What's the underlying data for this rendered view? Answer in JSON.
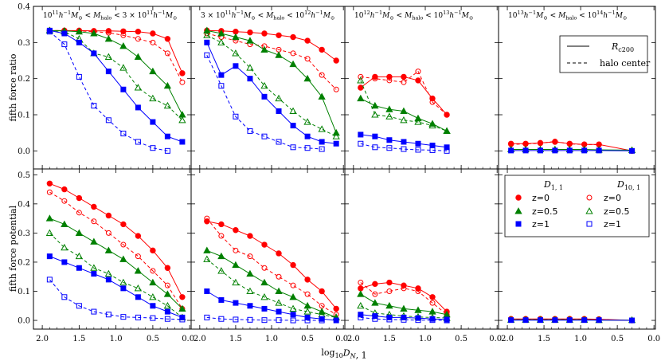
{
  "colors": {
    "z0": "#ff0000",
    "z05": "#008000",
    "z1": "#0000ff"
  },
  "chart_data": {
    "type": "line",
    "title": "",
    "xlabel": "log10 D_{N,1}",
    "rows": [
      {
        "ylabel": "fifth force ratio",
        "ylim": [
          -0.05,
          0.4
        ],
        "yticks": [
          "0.0",
          "0.1",
          "0.2",
          "0.3",
          "0.4"
        ]
      },
      {
        "ylabel": "fifth force potential",
        "ylim": [
          -0.03,
          0.52
        ],
        "yticks": [
          "0.0",
          "0.1",
          "0.2",
          "0.3",
          "0.4",
          "0.5"
        ]
      }
    ],
    "xlim": [
      2.12,
      -0.02
    ],
    "xticks": [
      "2.0",
      "1.5",
      "1.0",
      "0.5",
      "0.0"
    ],
    "panel_titles": [
      "10^11 h^-1 M_⊙ < M_halo < 3×10^11 h^-1 M_⊙",
      "3×10^11 h^-1 M_⊙ < M_halo < 10^12 h^-1 M_⊙",
      "10^12 h^-1 M_⊙ < M_halo < 10^13 h^-1 M_⊙",
      "10^13 h^-1 M_⊙ < M_halo < 10^14 h^-1 M_⊙"
    ],
    "legend_top": {
      "items": [
        "R_c200",
        "halo center"
      ],
      "placement": "top-right"
    },
    "legend_bottom": {
      "col_headers": [
        "D_1,1",
        "D_10,1"
      ],
      "labels": [
        "z=0",
        "z=0.5",
        "z=1"
      ],
      "placement": "top-right"
    },
    "panels": [
      {
        "row": 0,
        "col": 0,
        "x": [
          1.9,
          1.7,
          1.5,
          1.3,
          1.1,
          0.9,
          0.7,
          0.5,
          0.3,
          0.1
        ],
        "series": [
          {
            "name": "D11 z=0",
            "values": [
              0.333,
              0.333,
              0.333,
              0.332,
              0.332,
              0.331,
              0.33,
              0.325,
              0.31,
              0.215
            ]
          },
          {
            "name": "D101 z=0",
            "values": [
              0.333,
              0.333,
              0.332,
              0.33,
              0.327,
              0.32,
              0.31,
              0.3,
              0.27,
              0.19
            ]
          },
          {
            "name": "D11 z=0.5",
            "values": [
              0.333,
              0.332,
              0.33,
              0.325,
              0.31,
              0.29,
              0.26,
              0.22,
              0.18,
              0.1
            ]
          },
          {
            "name": "D101 z=0.5",
            "values": [
              0.333,
              0.33,
              0.31,
              0.27,
              0.26,
              0.23,
              0.175,
              0.145,
              0.125,
              0.085
            ]
          },
          {
            "name": "D11 z=1",
            "values": [
              0.333,
              0.325,
              0.3,
              0.27,
              0.22,
              0.17,
              0.12,
              0.08,
              0.04,
              0.025
            ]
          },
          {
            "name": "D101 z=1",
            "values": [
              0.33,
              0.295,
              0.205,
              0.125,
              0.085,
              0.048,
              0.025,
              0.008,
              0.0,
              null
            ]
          }
        ]
      },
      {
        "row": 0,
        "col": 1,
        "x": [
          1.9,
          1.7,
          1.5,
          1.3,
          1.1,
          0.9,
          0.7,
          0.5,
          0.3,
          0.1
        ],
        "series": [
          {
            "name": "D11 z=0",
            "values": [
              0.333,
              0.332,
              0.33,
              0.328,
              0.325,
              0.32,
              0.315,
              0.305,
              0.28,
              0.25
            ]
          },
          {
            "name": "D101 z=0",
            "values": [
              0.325,
              0.315,
              0.305,
              0.295,
              0.29,
              0.28,
              0.27,
              0.255,
              0.21,
              0.17
            ]
          },
          {
            "name": "D11 z=0.5",
            "values": [
              0.333,
              0.325,
              0.315,
              0.305,
              0.28,
              0.265,
              0.24,
              0.2,
              0.15,
              0.05
            ]
          },
          {
            "name": "D101 z=0.5",
            "values": [
              0.32,
              0.3,
              0.27,
              0.23,
              0.18,
              0.145,
              0.11,
              0.08,
              0.06,
              0.04
            ]
          },
          {
            "name": "D11 z=1",
            "values": [
              0.3,
              0.21,
              0.235,
              0.2,
              0.15,
              0.11,
              0.07,
              0.04,
              0.025,
              0.02
            ]
          },
          {
            "name": "D101 z=1",
            "values": [
              0.265,
              0.18,
              0.095,
              0.055,
              0.04,
              0.025,
              0.01,
              0.008,
              0.005,
              null
            ]
          }
        ]
      },
      {
        "row": 0,
        "col": 2,
        "x": [
          1.9,
          1.7,
          1.5,
          1.3,
          1.1,
          0.9,
          0.7
        ],
        "series": [
          {
            "name": "D11 z=0",
            "values": [
              0.175,
              0.205,
              0.205,
              0.205,
              0.195,
              0.145,
              0.1
            ]
          },
          {
            "name": "D101 z=0",
            "values": [
              0.205,
              0.2,
              0.195,
              0.19,
              0.22,
              0.135,
              0.1
            ]
          },
          {
            "name": "D11 z=0.5",
            "values": [
              0.145,
              0.125,
              0.115,
              0.11,
              0.09,
              0.075,
              0.055
            ]
          },
          {
            "name": "D101 z=0.5",
            "values": [
              0.195,
              0.1,
              0.095,
              0.085,
              0.08,
              0.07,
              0.055
            ]
          },
          {
            "name": "D11 z=1",
            "values": [
              0.045,
              0.04,
              0.03,
              0.025,
              0.02,
              0.015,
              0.01
            ]
          },
          {
            "name": "D101 z=1",
            "values": [
              0.02,
              0.01,
              0.008,
              0.005,
              0.003,
              0.002,
              0.0
            ]
          }
        ]
      },
      {
        "row": 0,
        "col": 3,
        "x": [
          1.95,
          1.75,
          1.55,
          1.35,
          1.15,
          0.95,
          0.75,
          0.3
        ],
        "series": [
          {
            "name": "D11 z=0",
            "values": [
              0.02,
              0.02,
              0.022,
              0.025,
              0.02,
              0.018,
              0.018,
              0.0
            ]
          },
          {
            "name": "D101 z=0",
            "values": [
              0.018,
              0.019,
              0.021,
              0.026,
              0.019,
              0.018,
              0.017,
              null
            ]
          },
          {
            "name": "D11 z=0.5",
            "values": [
              0.004,
              0.004,
              0.004,
              0.004,
              0.004,
              0.004,
              0.003,
              0.002
            ]
          },
          {
            "name": "D11 z=1",
            "values": [
              0.001,
              0.001,
              0.001,
              0.001,
              0.001,
              0.001,
              0.001,
              0.0
            ]
          }
        ]
      },
      {
        "row": 1,
        "col": 0,
        "x": [
          1.9,
          1.7,
          1.5,
          1.3,
          1.1,
          0.9,
          0.7,
          0.5,
          0.3,
          0.1
        ],
        "series": [
          {
            "name": "D11 z=0",
            "values": [
              0.47,
              0.45,
              0.42,
              0.39,
              0.36,
              0.33,
              0.29,
              0.24,
              0.18,
              0.08
            ]
          },
          {
            "name": "D101 z=0",
            "values": [
              0.44,
              0.41,
              0.37,
              0.34,
              0.3,
              0.26,
              0.22,
              0.17,
              0.12,
              0.04
            ]
          },
          {
            "name": "D11 z=0.5",
            "values": [
              0.35,
              0.33,
              0.3,
              0.27,
              0.24,
              0.21,
              0.17,
              0.13,
              0.09,
              0.04
            ]
          },
          {
            "name": "D101 z=0.5",
            "values": [
              0.3,
              0.25,
              0.22,
              0.18,
              0.16,
              0.13,
              0.11,
              0.08,
              0.05,
              0.01
            ]
          },
          {
            "name": "D11 z=1",
            "values": [
              0.22,
              0.2,
              0.18,
              0.16,
              0.14,
              0.11,
              0.08,
              0.05,
              0.03,
              0.01
            ]
          },
          {
            "name": "D101 z=1",
            "values": [
              0.14,
              0.08,
              0.05,
              0.03,
              0.02,
              0.012,
              0.01,
              0.008,
              0.005,
              0.003
            ]
          }
        ]
      },
      {
        "row": 1,
        "col": 1,
        "x": [
          1.9,
          1.7,
          1.5,
          1.3,
          1.1,
          0.9,
          0.7,
          0.5,
          0.3,
          0.1
        ],
        "series": [
          {
            "name": "D11 z=0",
            "values": [
              0.34,
              0.33,
              0.31,
              0.29,
              0.26,
              0.23,
              0.19,
              0.14,
              0.1,
              0.04
            ]
          },
          {
            "name": "D101 z=0",
            "values": [
              0.35,
              0.29,
              0.24,
              0.22,
              0.18,
              0.15,
              0.12,
              0.09,
              0.05,
              0.02
            ]
          },
          {
            "name": "D11 z=0.5",
            "values": [
              0.24,
              0.22,
              0.19,
              0.16,
              0.13,
              0.1,
              0.08,
              0.05,
              0.03,
              0.01
            ]
          },
          {
            "name": "D101 z=0.5",
            "values": [
              0.21,
              0.17,
              0.13,
              0.1,
              0.08,
              0.06,
              0.04,
              0.03,
              0.02,
              0.01
            ]
          },
          {
            "name": "D11 z=1",
            "values": [
              0.1,
              0.07,
              0.06,
              0.05,
              0.04,
              0.03,
              0.02,
              0.01,
              0.005,
              0.0
            ]
          },
          {
            "name": "D101 z=1",
            "values": [
              0.01,
              0.005,
              0.003,
              0.002,
              0.001,
              0.001,
              0.0,
              0.0,
              0.0,
              null
            ]
          }
        ]
      },
      {
        "row": 1,
        "col": 2,
        "x": [
          1.9,
          1.7,
          1.5,
          1.3,
          1.1,
          0.9,
          0.7
        ],
        "series": [
          {
            "name": "D11 z=0",
            "values": [
              0.11,
              0.125,
              0.13,
              0.12,
              0.11,
              0.08,
              0.03
            ]
          },
          {
            "name": "D101 z=0",
            "values": [
              0.13,
              0.09,
              0.1,
              0.11,
              0.1,
              0.06,
              0.02
            ]
          },
          {
            "name": "D11 z=0.5",
            "values": [
              0.09,
              0.06,
              0.05,
              0.04,
              0.035,
              0.03,
              0.02
            ]
          },
          {
            "name": "D101 z=0.5",
            "values": [
              0.05,
              0.025,
              0.02,
              0.015,
              0.012,
              0.01,
              0.008
            ]
          },
          {
            "name": "D11 z=1",
            "values": [
              0.02,
              0.015,
              0.01,
              0.01,
              0.008,
              0.005,
              0.003
            ]
          },
          {
            "name": "D101 z=1",
            "values": [
              0.01,
              0.005,
              0.003,
              0.002,
              0.001,
              0.001,
              0.0
            ]
          }
        ]
      },
      {
        "row": 1,
        "col": 3,
        "x": [
          1.95,
          1.75,
          1.55,
          1.35,
          1.15,
          0.95,
          0.75,
          0.3
        ],
        "series": [
          {
            "name": "D11 z=0",
            "values": [
              0.005,
              0.005,
              0.005,
              0.005,
              0.005,
              0.005,
              0.004,
              0.0
            ]
          },
          {
            "name": "D101 z=0",
            "values": [
              0.004,
              0.004,
              0.004,
              0.004,
              0.004,
              0.004,
              0.003,
              null
            ]
          },
          {
            "name": "D11 z=0.5",
            "values": [
              0.002,
              0.002,
              0.002,
              0.002,
              0.002,
              0.002,
              0.001,
              0.001
            ]
          },
          {
            "name": "D11 z=1",
            "values": [
              0.001,
              0.001,
              0.001,
              0.001,
              0.001,
              0.001,
              0.001,
              0.0
            ]
          }
        ]
      }
    ]
  }
}
